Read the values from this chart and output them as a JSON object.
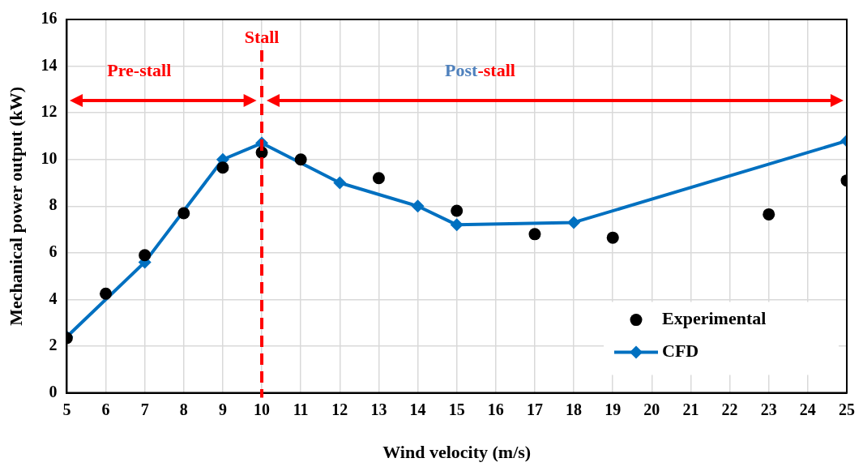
{
  "chart_data": {
    "type": "scatter",
    "xlabel": "Wind velocity (m/s)",
    "ylabel": "Mechanical power output (kW)",
    "xlim": [
      5,
      25
    ],
    "xticks": [
      5,
      6,
      7,
      8,
      9,
      10,
      11,
      12,
      13,
      14,
      15,
      16,
      17,
      18,
      19,
      20,
      21,
      22,
      23,
      24,
      25
    ],
    "ylim": [
      0,
      16
    ],
    "yticks": [
      0,
      2,
      4,
      6,
      8,
      10,
      12,
      14,
      16
    ],
    "grid": true,
    "legend": "bottom right",
    "series": [
      {
        "name": "Experimental",
        "marker": "circle",
        "color": "#000000",
        "x": [
          5,
          6,
          7,
          8,
          9,
          10,
          11,
          13,
          15,
          17,
          19,
          23,
          25
        ],
        "values": [
          2.35,
          4.25,
          5.9,
          7.7,
          9.65,
          10.3,
          10.0,
          9.2,
          7.8,
          6.8,
          6.65,
          7.65,
          9.1
        ]
      },
      {
        "name": "CFD",
        "type": "line",
        "marker": "diamond",
        "color": "#0070c0",
        "x": [
          5,
          7,
          9,
          10,
          12,
          14,
          15,
          18,
          25
        ],
        "values": [
          2.4,
          5.6,
          10.0,
          10.7,
          9.0,
          8.0,
          7.2,
          7.3,
          10.8
        ]
      }
    ],
    "ref_lines": [
      {
        "axis": "x",
        "value": 10,
        "label": "Stall",
        "color": "#ff0000",
        "line_style": "dashed"
      }
    ],
    "annotations": [
      "Pre-stall",
      "Post-stall"
    ]
  }
}
